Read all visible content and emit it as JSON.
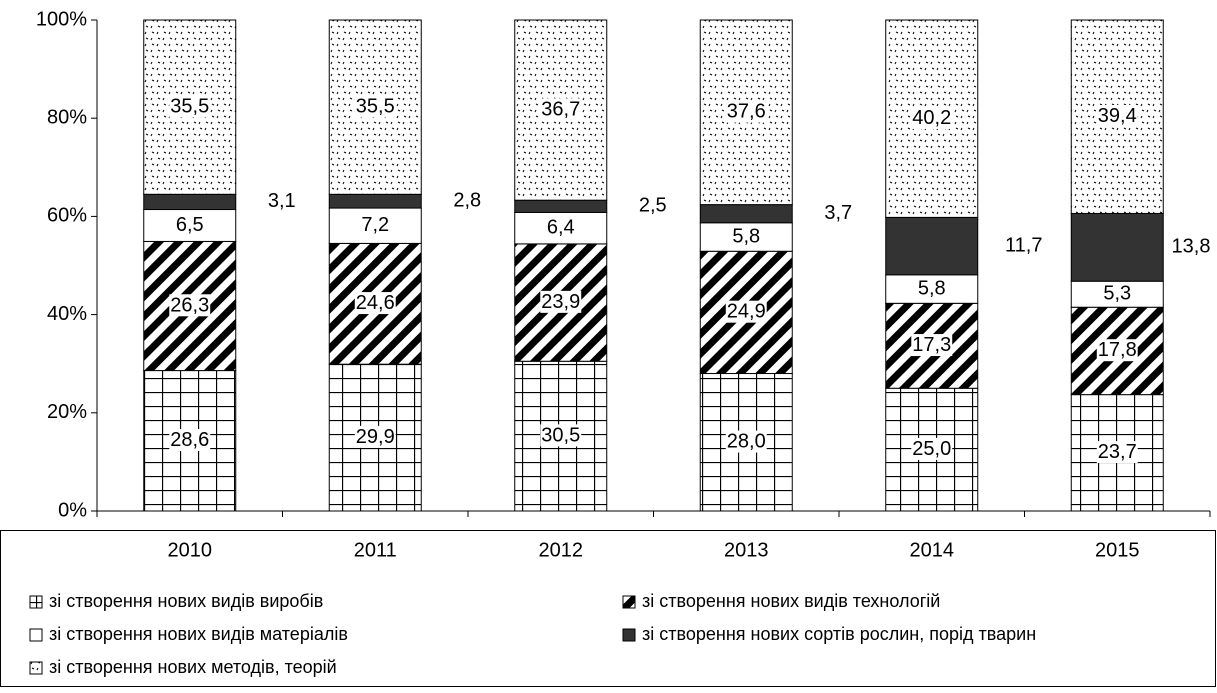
{
  "chart_data": {
    "type": "stacked_bar",
    "categories": [
      "2010",
      "2011",
      "2012",
      "2013",
      "2014",
      "2015"
    ],
    "ylim": [
      0,
      100
    ],
    "yticks": [
      {
        "value": 0,
        "label": "0%"
      },
      {
        "value": 20,
        "label": "20%"
      },
      {
        "value": 40,
        "label": "40%"
      },
      {
        "value": 60,
        "label": "60%"
      },
      {
        "value": 80,
        "label": "80%"
      },
      {
        "value": 100,
        "label": "100%"
      }
    ],
    "series": [
      {
        "name": "зі створення нових видів виробів",
        "color": "#000000",
        "pattern": "grid",
        "values": [
          28.6,
          29.9,
          30.5,
          28.0,
          25.0,
          23.7
        ],
        "value_labels": [
          "28,6",
          "29,9",
          "30,5",
          "28,0",
          "25,0",
          "23,7"
        ]
      },
      {
        "name": "зі створення нових видів технологій",
        "color": "#000000",
        "pattern": "diagonal",
        "values": [
          26.3,
          24.6,
          23.9,
          24.9,
          17.3,
          17.8
        ],
        "value_labels": [
          "26,3",
          "24,6",
          "23,9",
          "24,9",
          "17,3",
          "17,8"
        ]
      },
      {
        "name": "зі створення нових видів матеріалів",
        "color": "#ffffff",
        "pattern": "none",
        "values": [
          6.5,
          7.2,
          6.4,
          5.8,
          5.8,
          5.3
        ],
        "value_labels": [
          "6,5",
          "7,2",
          "6,4",
          "5,8",
          "5,8",
          "5,3"
        ]
      },
      {
        "name": "зі створення нових сортів рослин, порід тварин",
        "color": "#333333",
        "pattern": "solid",
        "values": [
          3.1,
          2.8,
          2.5,
          3.7,
          11.7,
          13.8
        ],
        "value_labels": [
          "3,1",
          "2,8",
          "2,5",
          "3,7",
          "11,7",
          "13,8"
        ],
        "label_position": "outside"
      },
      {
        "name": "зі створення нових методів, теорій",
        "color": "#000000",
        "pattern": "dots",
        "values": [
          35.5,
          35.5,
          36.7,
          37.6,
          40.2,
          39.4
        ],
        "value_labels": [
          "35,5",
          "35,5",
          "36,7",
          "37,6",
          "40,2",
          "39,4"
        ]
      }
    ]
  }
}
